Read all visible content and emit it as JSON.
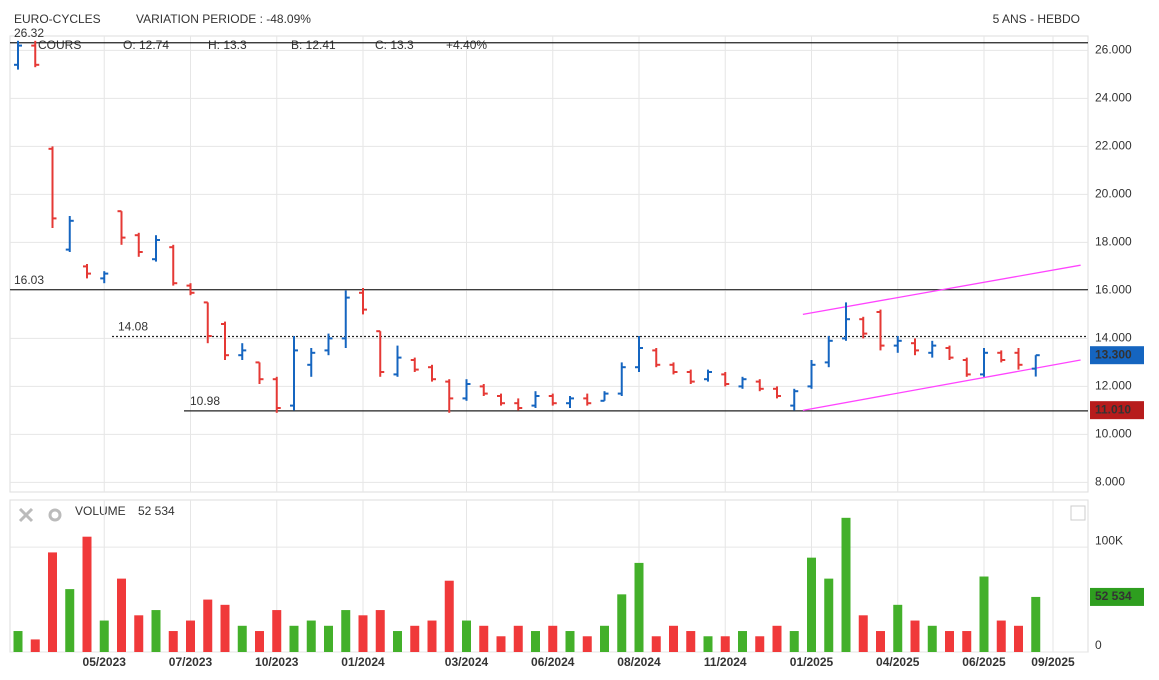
{
  "chart_data": [
    {
      "type": "ohlc",
      "title": "EURO-CYCLES",
      "subtitle": "VARIATION PERIODE : -48.09%",
      "period": "5 ANS - HEBDO",
      "info": [
        "COURS",
        "O: 12.74",
        "H: 13.3",
        "B: 12.41",
        "C: 13.3",
        "+4.40%"
      ],
      "categories": [
        null,
        null,
        null,
        null,
        null,
        "05/2023",
        null,
        null,
        null,
        null,
        "07/2023",
        null,
        null,
        null,
        null,
        "10/2023",
        null,
        null,
        null,
        null,
        "01/2024",
        null,
        null,
        null,
        null,
        null,
        "03/2024",
        null,
        null,
        null,
        null,
        "06/2024",
        null,
        null,
        null,
        null,
        "08/2024",
        null,
        null,
        null,
        null,
        "11/2024",
        null,
        null,
        null,
        null,
        "01/2025",
        null,
        null,
        null,
        null,
        "04/2025",
        null,
        null,
        null,
        null,
        "06/2025",
        null,
        null,
        null,
        "09/2025"
      ],
      "open": [
        25.4,
        26.2,
        21.9,
        17.7,
        17.0,
        16.5,
        19.3,
        18.3,
        17.3,
        17.8,
        16.2,
        15.5,
        14.6,
        13.3,
        13.0,
        12.3,
        11.2,
        12.9,
        13.5,
        14.0,
        15.9,
        14.3,
        12.5,
        13.1,
        12.8,
        12.2,
        11.5,
        12.0,
        11.6,
        11.3,
        11.2,
        11.6,
        11.3,
        11.5,
        11.4,
        11.7,
        12.8,
        13.5,
        12.9,
        12.6,
        12.3,
        12.5,
        12.0,
        12.2,
        11.9,
        11.2,
        12.0,
        13.0,
        14.0,
        14.8,
        15.1,
        13.7,
        13.8,
        13.4,
        13.6,
        13.1,
        12.5,
        13.4,
        13.4,
        12.74,
        null
      ],
      "high": [
        26.4,
        26.4,
        22.0,
        19.1,
        17.1,
        16.8,
        19.3,
        18.4,
        18.3,
        17.9,
        16.3,
        15.5,
        14.7,
        13.8,
        13.0,
        12.4,
        14.1,
        13.6,
        14.2,
        16.0,
        16.1,
        14.3,
        13.7,
        13.2,
        12.9,
        12.3,
        12.3,
        12.1,
        11.7,
        11.5,
        11.8,
        11.7,
        11.6,
        11.7,
        11.8,
        13.0,
        14.1,
        13.6,
        13.0,
        12.7,
        12.7,
        12.6,
        12.4,
        12.3,
        12.0,
        11.9,
        13.1,
        14.1,
        15.5,
        14.9,
        15.2,
        14.1,
        14.0,
        13.9,
        13.7,
        13.2,
        13.6,
        13.5,
        13.6,
        13.3,
        null
      ],
      "low": [
        25.2,
        25.3,
        18.6,
        17.6,
        16.5,
        16.3,
        17.9,
        17.4,
        17.2,
        16.2,
        15.8,
        13.8,
        13.1,
        13.1,
        12.1,
        10.9,
        11.0,
        12.4,
        13.3,
        13.6,
        15.0,
        12.4,
        12.4,
        12.6,
        12.2,
        10.9,
        11.4,
        11.6,
        11.2,
        11.0,
        11.1,
        11.2,
        11.1,
        11.2,
        11.4,
        11.6,
        12.6,
        12.8,
        12.5,
        12.1,
        12.2,
        12.0,
        11.9,
        11.8,
        11.5,
        11.0,
        11.9,
        12.8,
        13.9,
        14.0,
        13.5,
        13.4,
        13.3,
        13.2,
        13.1,
        12.4,
        12.4,
        13.0,
        12.7,
        12.41,
        null
      ],
      "close": [
        26.2,
        25.4,
        19.0,
        18.9,
        16.7,
        16.7,
        18.2,
        17.6,
        18.1,
        16.3,
        15.9,
        14.1,
        13.3,
        13.5,
        12.3,
        11.1,
        13.5,
        13.4,
        14.0,
        15.7,
        15.2,
        12.6,
        13.2,
        12.7,
        12.3,
        11.5,
        12.1,
        11.7,
        11.3,
        11.1,
        11.6,
        11.3,
        11.5,
        11.3,
        11.7,
        12.8,
        13.6,
        12.9,
        12.6,
        12.2,
        12.6,
        12.1,
        12.3,
        11.9,
        11.6,
        11.8,
        12.9,
        13.9,
        14.8,
        14.2,
        13.7,
        13.9,
        13.5,
        13.7,
        13.2,
        12.5,
        13.4,
        13.1,
        12.9,
        13.3,
        null
      ],
      "up_color": "#1565c0",
      "down_color": "#e53935",
      "ylim": [
        7.6,
        26.6
      ],
      "yticks": [
        {
          "value": 8,
          "label": "8.000"
        },
        {
          "value": 10,
          "label": "10.000"
        },
        {
          "value": 12,
          "label": "12.000"
        },
        {
          "value": 14,
          "label": "14.000"
        },
        {
          "value": 16,
          "label": "16.000"
        },
        {
          "value": 18,
          "label": "18.000"
        },
        {
          "value": 20,
          "label": "20.000"
        },
        {
          "value": 22,
          "label": "22.000"
        },
        {
          "value": 24,
          "label": "24.000"
        },
        {
          "value": 26,
          "label": "26.000"
        }
      ],
      "levels": [
        {
          "value": 26.32,
          "style": "solid"
        },
        {
          "value": 16.03,
          "style": "solid"
        },
        {
          "value": 14.08,
          "style": "dotted"
        },
        {
          "value": 10.98,
          "style": "solid"
        }
      ],
      "tags": [
        {
          "value": 13.3,
          "label": "13.300",
          "color": "#1565c0"
        },
        {
          "value": 11.01,
          "label": "11.010",
          "color": "#b71c1c"
        }
      ],
      "trendlines": [
        {
          "x": [
            45.5,
            61.6
          ],
          "y": [
            15.0,
            17.05
          ]
        },
        {
          "x": [
            45.5,
            61.6
          ],
          "y": [
            11.0,
            13.1
          ]
        }
      ],
      "trend_color": "#ff44ff",
      "grid": true
    },
    {
      "type": "bar",
      "title": "VOLUME",
      "last_label": "52 534",
      "values": [
        20000,
        12000,
        95000,
        60000,
        110000,
        30000,
        70000,
        35000,
        40000,
        20000,
        30000,
        50000,
        45000,
        25000,
        20000,
        40000,
        25000,
        30000,
        25000,
        40000,
        35000,
        40000,
        20000,
        25000,
        30000,
        68000,
        30000,
        25000,
        15000,
        25000,
        20000,
        25000,
        20000,
        15000,
        25000,
        55000,
        85000,
        15000,
        25000,
        20000,
        15000,
        15000,
        20000,
        15000,
        25000,
        20000,
        90000,
        70000,
        128000,
        35000,
        20000,
        45000,
        30000,
        25000,
        20000,
        20000,
        72000,
        30000,
        25000,
        52534,
        null
      ],
      "up_color": "#43b02a",
      "down_color": "#f0393a",
      "tag_color": "#2e9e1f",
      "ylim": [
        0,
        145000
      ],
      "yticks": [
        0,
        {
          "value": 100000,
          "label": "100K"
        }
      ]
    }
  ]
}
